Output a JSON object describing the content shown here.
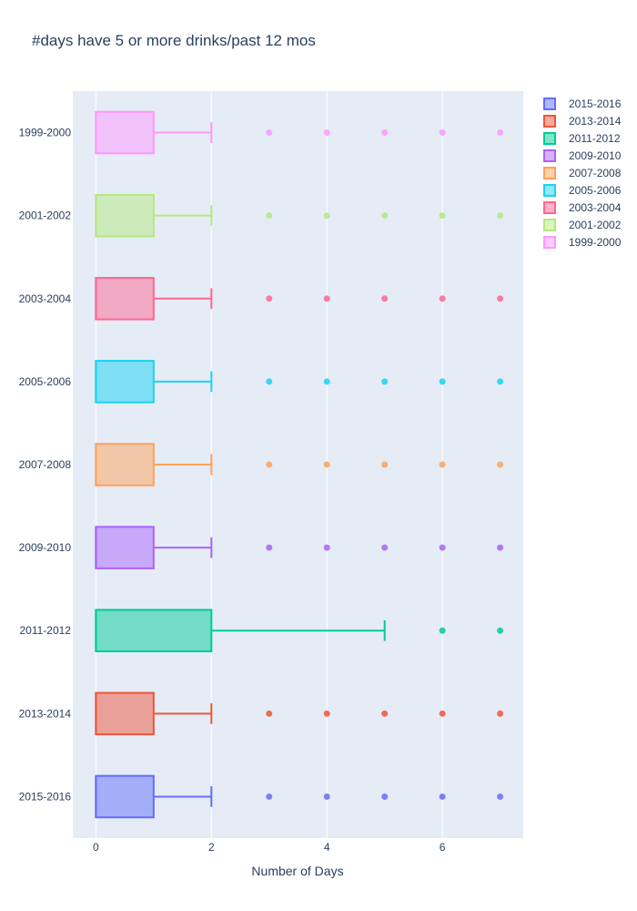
{
  "chart_data": {
    "type": "box",
    "orientation": "horizontal",
    "title": "#days have 5 or more drinks/past 12 mos",
    "xlabel": "Number of Days",
    "ylabel": "",
    "xlim": [
      -0.4,
      7.4
    ],
    "x_ticks": [
      0,
      2,
      4,
      6
    ],
    "grid": true,
    "legend_position": "right",
    "series": [
      {
        "name": "2015-2016",
        "color": "#636efa",
        "min": 0,
        "q1": 0,
        "median": 0,
        "q3": 1,
        "max": 2,
        "outliers": [
          3,
          4,
          5,
          6,
          7
        ]
      },
      {
        "name": "2013-2014",
        "color": "#EF553B",
        "min": 0,
        "q1": 0,
        "median": 0,
        "q3": 1,
        "max": 2,
        "outliers": [
          3,
          4,
          5,
          6,
          7
        ]
      },
      {
        "name": "2011-2012",
        "color": "#00cc96",
        "min": 0,
        "q1": 0,
        "median": 0,
        "q3": 2,
        "max": 5,
        "outliers": [
          6,
          7
        ]
      },
      {
        "name": "2009-2010",
        "color": "#ab63fa",
        "min": 0,
        "q1": 0,
        "median": 0,
        "q3": 1,
        "max": 2,
        "outliers": [
          3,
          4,
          5,
          6,
          7
        ]
      },
      {
        "name": "2007-2008",
        "color": "#FFA15A",
        "min": 0,
        "q1": 0,
        "median": 0,
        "q3": 1,
        "max": 2,
        "outliers": [
          3,
          4,
          5,
          6,
          7
        ]
      },
      {
        "name": "2005-2006",
        "color": "#19d3f3",
        "min": 0,
        "q1": 0,
        "median": 0,
        "q3": 1,
        "max": 2,
        "outliers": [
          3,
          4,
          5,
          6,
          7
        ]
      },
      {
        "name": "2003-2004",
        "color": "#FF6692",
        "min": 0,
        "q1": 0,
        "median": 0,
        "q3": 1,
        "max": 2,
        "outliers": [
          3,
          4,
          5,
          6,
          7
        ]
      },
      {
        "name": "2001-2002",
        "color": "#B6E880",
        "min": 0,
        "q1": 0,
        "median": 0,
        "q3": 1,
        "max": 2,
        "outliers": [
          3,
          4,
          5,
          6,
          7
        ]
      },
      {
        "name": "1999-2000",
        "color": "#FF97FF",
        "min": 0,
        "q1": 0,
        "median": 0,
        "q3": 1,
        "max": 2,
        "outliers": [
          3,
          4,
          5,
          6,
          7
        ]
      }
    ]
  }
}
